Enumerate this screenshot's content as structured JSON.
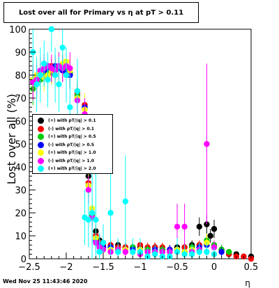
{
  "title": "Lost over all for Primary vs   η at pT > 0.11",
  "footer_date": "Wed Nov 25 11:43:46 2020",
  "chart_data": {
    "type": "scatter",
    "title": "Lost over all for Primary vs   η at pT > 0.11",
    "xlabel": "η",
    "ylabel": "Lost over all (%)",
    "xlim": [
      -2.5,
      0.5
    ],
    "ylim": [
      0,
      100
    ],
    "xticks": [
      -2.5,
      -2,
      -1.5,
      -1,
      -0.5,
      0,
      0.5
    ],
    "xtick_labels": [
      "−2.5",
      "−2",
      "−1.5",
      "−1",
      "−0.5",
      "0",
      "0.5"
    ],
    "yticks": [
      0,
      10,
      20,
      30,
      40,
      50,
      60,
      70,
      80,
      90,
      100
    ],
    "grid": false,
    "legend_position": "left-middle",
    "series": [
      {
        "name": "(+) with pT/|q| > 0.1",
        "color": "#000000",
        "x": [
          -2.45,
          -2.4,
          -2.35,
          -2.3,
          -2.25,
          -2.2,
          -2.15,
          -2.1,
          -2.05,
          -2.0,
          -1.95,
          -1.85,
          -1.75,
          -1.7,
          -1.65,
          -1.6,
          -1.55,
          -1.5,
          -1.4,
          -1.3,
          -1.2,
          -1.1,
          -1.0,
          -0.9,
          -0.8,
          -0.7,
          -0.6,
          -0.5,
          -0.4,
          -0.3,
          -0.2,
          -0.1,
          -0.05,
          0.0,
          0.1,
          0.2,
          0.3,
          0.4,
          0.5
        ],
        "y": [
          78,
          79,
          80,
          82,
          84,
          83,
          82,
          83,
          84,
          82,
          80,
          73,
          67,
          36,
          20,
          12,
          8,
          7,
          6,
          6,
          5,
          5,
          5,
          4,
          5,
          4,
          4,
          5,
          5,
          6,
          14,
          15,
          10,
          13,
          4,
          2,
          2,
          1,
          1
        ],
        "err": [
          6,
          5,
          5,
          4,
          4,
          4,
          4,
          4,
          4,
          4,
          5,
          5,
          5,
          4,
          3,
          3,
          2,
          2,
          2,
          2,
          2,
          2,
          2,
          2,
          2,
          2,
          2,
          2,
          2,
          2,
          4,
          4,
          3,
          4,
          2,
          1,
          1,
          1,
          1
        ]
      },
      {
        "name": "(-) with pT/|q| > 0.1",
        "color": "#ff0000",
        "x": [
          -2.45,
          -2.4,
          -2.35,
          -2.3,
          -2.25,
          -2.2,
          -2.15,
          -2.1,
          -2.05,
          -2.0,
          -1.95,
          -1.85,
          -1.75,
          -1.7,
          -1.65,
          -1.6,
          -1.55,
          -1.5,
          -1.4,
          -1.3,
          -1.2,
          -1.1,
          -1.0,
          -0.9,
          -0.8,
          -0.7,
          -0.6,
          -0.5,
          -0.4,
          -0.3,
          -0.2,
          -0.1,
          0.0,
          0.1,
          0.2,
          0.3,
          0.4,
          0.5
        ],
        "y": [
          77,
          79,
          81,
          82,
          83,
          84,
          83,
          84,
          83,
          82,
          81,
          72,
          67,
          33,
          20,
          10,
          7,
          6,
          6,
          5,
          5,
          5,
          6,
          5,
          5,
          5,
          4,
          4,
          5,
          5,
          6,
          7,
          6,
          3,
          2,
          1,
          1,
          0
        ],
        "err": [
          6,
          5,
          5,
          4,
          4,
          4,
          4,
          4,
          4,
          4,
          5,
          5,
          5,
          4,
          3,
          3,
          2,
          2,
          2,
          2,
          2,
          2,
          2,
          2,
          2,
          2,
          2,
          2,
          2,
          2,
          2,
          3,
          2,
          1,
          1,
          1,
          1,
          0
        ]
      },
      {
        "name": "(+) with pT/|q| > 0.5",
        "color": "#00cc00",
        "x": [
          -2.45,
          -2.4,
          -2.35,
          -2.3,
          -2.25,
          -2.2,
          -2.15,
          -2.1,
          -2.05,
          -2.0,
          -1.95,
          -1.85,
          -1.75,
          -1.7,
          -1.65,
          -1.6,
          -1.55,
          -1.5,
          -1.4,
          -1.3,
          -1.2,
          -1.1,
          -1.0,
          -0.9,
          -0.8,
          -0.7,
          -0.6,
          -0.5,
          -0.4,
          -0.3,
          -0.2,
          -0.1,
          0.0,
          0.1,
          0.2
        ],
        "y": [
          74,
          76,
          78,
          80,
          82,
          81,
          82,
          83,
          84,
          83,
          81,
          71,
          66,
          32,
          19,
          9,
          6,
          5,
          5,
          4,
          4,
          5,
          4,
          4,
          3,
          4,
          3,
          4,
          3,
          5,
          5,
          8,
          6,
          4,
          3
        ],
        "err": [
          7,
          6,
          5,
          5,
          5,
          5,
          5,
          5,
          5,
          5,
          6,
          6,
          6,
          5,
          4,
          3,
          2,
          2,
          2,
          2,
          2,
          2,
          2,
          2,
          2,
          2,
          2,
          2,
          2,
          2,
          2,
          3,
          2,
          2,
          1
        ]
      },
      {
        "name": "(-) with pT/|q| > 0.5",
        "color": "#0000ff",
        "x": [
          -2.45,
          -2.4,
          -2.35,
          -2.3,
          -2.25,
          -2.2,
          -2.15,
          -2.1,
          -2.05,
          -2.0,
          -1.95,
          -1.85,
          -1.75,
          -1.7,
          -1.65,
          -1.6,
          -1.55,
          -1.5,
          -1.4,
          -1.3,
          -1.2,
          -1.1,
          -1.0,
          -0.9,
          -0.8,
          -0.7,
          -0.6,
          -0.5,
          -0.4,
          -0.3,
          -0.2,
          -0.1,
          0.0,
          0.1
        ],
        "y": [
          77,
          78,
          80,
          82,
          83,
          82,
          84,
          83,
          82,
          81,
          80,
          70,
          66,
          38,
          18,
          8,
          6,
          5,
          5,
          4,
          4,
          4,
          4,
          3,
          4,
          3,
          4,
          4,
          3,
          4,
          5,
          6,
          5,
          3
        ],
        "err": [
          7,
          6,
          5,
          5,
          5,
          5,
          5,
          5,
          5,
          5,
          6,
          6,
          6,
          5,
          4,
          3,
          2,
          2,
          2,
          2,
          2,
          2,
          2,
          2,
          2,
          2,
          2,
          2,
          2,
          2,
          2,
          3,
          2,
          2
        ]
      },
      {
        "name": "(+) with pT/|q| > 1.0",
        "color": "#ffff00",
        "x": [
          -2.45,
          -2.4,
          -2.35,
          -2.3,
          -2.25,
          -2.2,
          -2.15,
          -2.1,
          -2.05,
          -2.0,
          -1.95,
          -1.85,
          -1.75,
          -1.7,
          -1.65,
          -1.6,
          -1.55,
          -1.5,
          -1.4,
          -1.3,
          -1.2,
          -1.1,
          -1.0,
          -0.9,
          -0.8,
          -0.7,
          -0.6,
          -0.5,
          -0.4,
          -0.3,
          -0.2,
          -0.1,
          0.0
        ],
        "y": [
          78,
          80,
          81,
          79,
          80,
          82,
          80,
          84,
          85,
          86,
          82,
          70,
          65,
          32,
          22,
          9,
          5,
          4,
          4,
          4,
          4,
          3,
          4,
          3,
          3,
          3,
          3,
          4,
          3,
          4,
          4,
          7,
          5
        ],
        "err": [
          8,
          7,
          6,
          6,
          6,
          6,
          6,
          6,
          6,
          6,
          7,
          7,
          7,
          6,
          5,
          4,
          3,
          3,
          2,
          2,
          2,
          2,
          2,
          2,
          2,
          2,
          2,
          2,
          2,
          2,
          2,
          4,
          3
        ]
      },
      {
        "name": "(-) with pT/|q| > 1.0",
        "color": "#ff00ff",
        "x": [
          -2.45,
          -2.4,
          -2.35,
          -2.3,
          -2.25,
          -2.2,
          -2.15,
          -2.1,
          -2.05,
          -2.0,
          -1.95,
          -1.85,
          -1.75,
          -1.7,
          -1.65,
          -1.6,
          -1.55,
          -1.5,
          -1.4,
          -1.3,
          -1.2,
          -1.1,
          -1.0,
          -0.9,
          -0.8,
          -0.7,
          -0.6,
          -0.5,
          -0.4,
          -0.3,
          -0.2,
          -0.1,
          0.0
        ],
        "y": [
          77,
          78,
          82,
          83,
          84,
          83,
          82,
          84,
          83,
          84,
          83,
          69,
          63,
          30,
          18,
          7,
          5,
          4,
          3,
          4,
          3,
          3,
          2,
          3,
          3,
          3,
          3,
          14,
          14,
          3,
          4,
          50,
          5
        ],
        "err": [
          8,
          7,
          6,
          6,
          6,
          6,
          6,
          6,
          6,
          6,
          7,
          7,
          7,
          6,
          5,
          4,
          3,
          3,
          2,
          2,
          2,
          2,
          2,
          2,
          2,
          2,
          2,
          10,
          10,
          2,
          2,
          35,
          3
        ]
      },
      {
        "name": "(+) with pT/|q| > 2.0",
        "color": "#00ffff",
        "x": [
          -2.45,
          -2.4,
          -2.35,
          -2.3,
          -2.25,
          -2.2,
          -2.15,
          -2.1,
          -2.05,
          -2.0,
          -1.95,
          -1.85,
          -1.75,
          -1.7,
          -1.65,
          -1.6,
          -1.55,
          -1.5,
          -1.4,
          -1.3,
          -1.2,
          -1.1,
          -1.0,
          -0.9,
          -0.8,
          -0.7,
          -0.6,
          -0.5,
          -0.4,
          -0.3,
          -0.2,
          -0.1,
          0.0
        ],
        "y": [
          90,
          76,
          80,
          85,
          78,
          100,
          80,
          76,
          92,
          80,
          66,
          73,
          18,
          17,
          20,
          17,
          3,
          7,
          20,
          3,
          25,
          3,
          3,
          1,
          2,
          1,
          1,
          3,
          2,
          2,
          3,
          3,
          2
        ],
        "err": [
          12,
          12,
          12,
          10,
          12,
          10,
          12,
          12,
          10,
          12,
          14,
          14,
          12,
          12,
          20,
          20,
          8,
          8,
          25,
          6,
          20,
          6,
          6,
          4,
          4,
          3,
          3,
          6,
          4,
          4,
          4,
          4,
          3
        ]
      }
    ]
  }
}
